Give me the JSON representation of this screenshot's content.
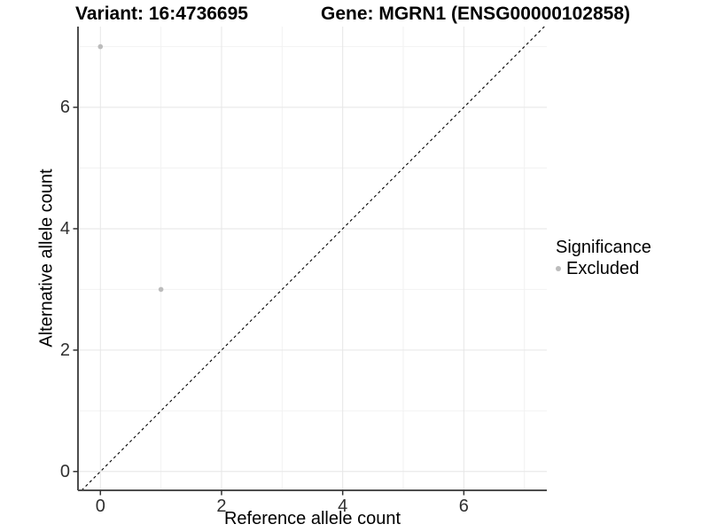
{
  "titles": {
    "variant": "Variant: 16:4736695",
    "gene": "Gene: MGRN1 (ENSG00000102858)"
  },
  "axes": {
    "x_label": "Reference allele count",
    "y_label": "Alternative allele count"
  },
  "legend": {
    "title": "Significance",
    "items": [
      {
        "label": "Excluded",
        "color": "#bcbcbc"
      }
    ]
  },
  "chart_data": {
    "type": "scatter",
    "title": "Variant: 16:4736695   Gene: MGRN1 (ENSG00000102858)",
    "xlabel": "Reference allele count",
    "ylabel": "Alternative allele count",
    "xlim": [
      -0.37,
      7.37
    ],
    "ylim": [
      -0.31,
      7.33
    ],
    "x_ticks": [
      0,
      2,
      4,
      6
    ],
    "y_ticks": [
      0,
      2,
      4,
      6
    ],
    "x_minor_ticks": [
      1,
      3,
      5,
      7
    ],
    "y_minor_ticks": [
      1,
      3,
      5,
      7
    ],
    "grid": true,
    "legend_position": "right",
    "series": [
      {
        "name": "Excluded",
        "color": "#bcbcbc",
        "points": [
          {
            "x": 0,
            "y": 7
          },
          {
            "x": 1,
            "y": 3
          }
        ]
      }
    ],
    "reference_line": {
      "type": "identity",
      "style": "dashed",
      "color": "#000000"
    }
  }
}
